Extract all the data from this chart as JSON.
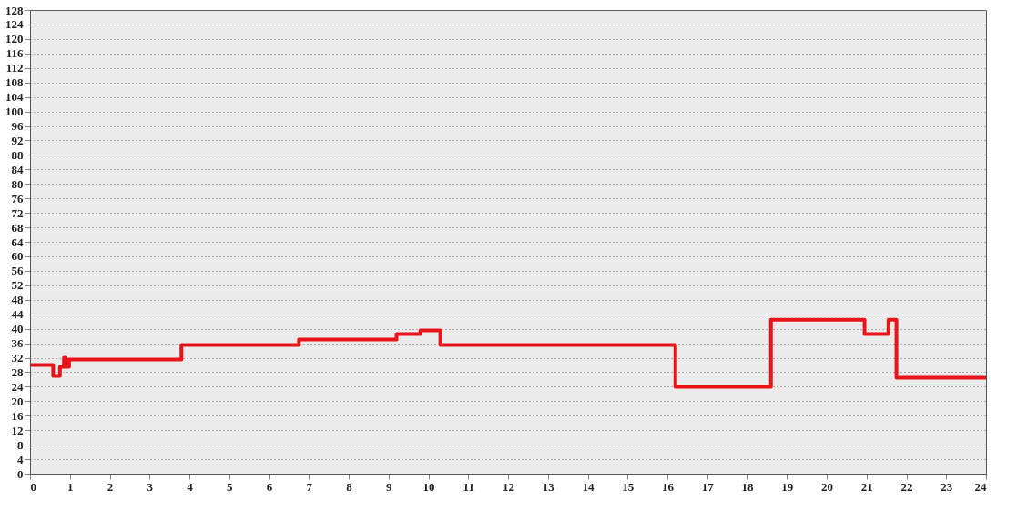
{
  "chart_data": {
    "type": "step",
    "x": [
      0,
      0.58,
      0.75,
      0.85,
      0.9,
      0.98,
      3.8,
      6.75,
      9.2,
      9.8,
      10.3,
      16.2,
      18.6,
      20.95,
      21.55,
      21.75,
      24
    ],
    "series": [
      {
        "color": "#e8141a",
        "values": [
          30,
          27,
          29.5,
          32,
          29.5,
          31.5,
          35.5,
          37,
          38.5,
          39.5,
          35.5,
          24,
          42.5,
          38.5,
          42.5,
          26.5,
          26.5
        ]
      }
    ],
    "xlim": [
      0,
      24
    ],
    "xticks": [
      0,
      1,
      2,
      3,
      4,
      5,
      6,
      7,
      8,
      9,
      10,
      11,
      12,
      13,
      14,
      15,
      16,
      17,
      18,
      19,
      20,
      21,
      22,
      23,
      24
    ],
    "ylim": [
      0,
      128
    ],
    "yticks": [
      0,
      4,
      8,
      12,
      16,
      20,
      24,
      28,
      32,
      36,
      40,
      44,
      48,
      52,
      56,
      60,
      64,
      68,
      72,
      76,
      80,
      84,
      88,
      92,
      96,
      100,
      104,
      108,
      112,
      116,
      120,
      124,
      128
    ],
    "grid": "y",
    "legend": false,
    "line_style": "solid",
    "marker": "none"
  }
}
